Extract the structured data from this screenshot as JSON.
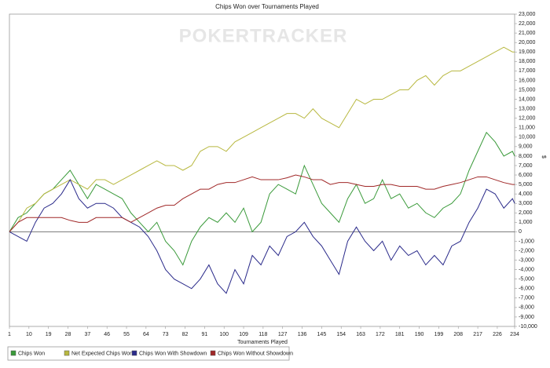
{
  "chart_data": {
    "type": "line",
    "title": "Chips Won over Tournaments Played",
    "watermark": "POKERTRACKER",
    "x_label": "Tournaments Played",
    "y_label": "$",
    "x": [
      1,
      5,
      9,
      13,
      17,
      21,
      25,
      29,
      33,
      37,
      41,
      45,
      49,
      53,
      57,
      61,
      65,
      69,
      73,
      77,
      81,
      85,
      89,
      93,
      97,
      101,
      105,
      109,
      113,
      117,
      121,
      125,
      129,
      133,
      137,
      141,
      145,
      149,
      153,
      157,
      161,
      165,
      169,
      173,
      177,
      181,
      185,
      189,
      193,
      197,
      201,
      205,
      209,
      213,
      217,
      221,
      225,
      229,
      233,
      234
    ],
    "series": [
      {
        "name": "Chips Won",
        "color": "#3a9a3a",
        "values": [
          0,
          1500,
          2000,
          3000,
          4000,
          4500,
          5500,
          6500,
          5000,
          3500,
          5000,
          4500,
          4000,
          3500,
          2000,
          1000,
          0,
          1000,
          -1000,
          -2000,
          -3500,
          -1000,
          500,
          1500,
          1000,
          2000,
          1000,
          2500,
          0,
          1000,
          4000,
          5000,
          4500,
          4000,
          7000,
          5000,
          3000,
          2000,
          1000,
          3500,
          5000,
          3000,
          3500,
          5500,
          3500,
          4000,
          2500,
          3000,
          2000,
          1500,
          2500,
          3000,
          4000,
          6500,
          8500,
          10500,
          9500,
          8000,
          8500,
          8000
        ]
      },
      {
        "name": "Net Expected Chips Won",
        "color": "#b8b840",
        "values": [
          0,
          1000,
          2500,
          3000,
          4000,
          4500,
          5000,
          5500,
          5000,
          4500,
          5500,
          5500,
          5000,
          5500,
          6000,
          6500,
          7000,
          7500,
          7000,
          7000,
          6500,
          7000,
          8500,
          9000,
          9000,
          8500,
          9500,
          10000,
          10500,
          11000,
          11500,
          12000,
          12500,
          12500,
          12000,
          13000,
          12000,
          11500,
          11000,
          12500,
          14000,
          13500,
          14000,
          14000,
          14500,
          15000,
          15000,
          16000,
          16500,
          15500,
          16500,
          17000,
          17000,
          17500,
          18000,
          18500,
          19000,
          19500,
          19000,
          19000
        ]
      },
      {
        "name": "Chips Won With Showdown",
        "color": "#2a2a8a",
        "values": [
          0,
          -500,
          -1000,
          1000,
          2500,
          3000,
          4000,
          5500,
          3500,
          2500,
          3000,
          3000,
          2500,
          1500,
          1000,
          500,
          -500,
          -2000,
          -4000,
          -5000,
          -5500,
          -6000,
          -5000,
          -3500,
          -5500,
          -6500,
          -4000,
          -5500,
          -2500,
          -3500,
          -1500,
          -2500,
          -500,
          0,
          1000,
          -500,
          -1500,
          -3000,
          -4500,
          -1000,
          500,
          -1000,
          -2000,
          -1000,
          -3000,
          -1500,
          -2500,
          -2000,
          -3500,
          -2500,
          -3500,
          -1500,
          -1000,
          1000,
          2500,
          4500,
          4000,
          2500,
          3500,
          3000
        ]
      },
      {
        "name": "Chips Won Without Showdown",
        "color": "#a02828",
        "values": [
          0,
          1000,
          1500,
          1500,
          1500,
          1500,
          1500,
          1200,
          1000,
          1000,
          1500,
          1500,
          1500,
          1500,
          1000,
          1500,
          2000,
          2500,
          2800,
          2800,
          3500,
          4000,
          4500,
          4500,
          5000,
          5200,
          5200,
          5500,
          5800,
          5500,
          5500,
          5500,
          5700,
          6000,
          5800,
          5500,
          5500,
          5000,
          5200,
          5200,
          5000,
          4800,
          4800,
          5000,
          5000,
          4800,
          4800,
          4800,
          4500,
          4500,
          4800,
          5000,
          5200,
          5500,
          5800,
          5800,
          5500,
          5200,
          5000,
          5000
        ]
      }
    ],
    "xlim": [
      1,
      234
    ],
    "xticks": [
      1,
      10,
      19,
      28,
      37,
      46,
      55,
      64,
      73,
      82,
      91,
      100,
      109,
      118,
      127,
      136,
      145,
      154,
      163,
      172,
      181,
      190,
      199,
      208,
      217,
      226,
      234
    ],
    "ylim": [
      -10000,
      23000
    ],
    "yticks": [
      {
        "value": -10000,
        "label": "-10,000"
      },
      {
        "value": -9000,
        "label": "-9,000"
      },
      {
        "value": -8000,
        "label": "-8,000"
      },
      {
        "value": -7000,
        "label": "-7,000"
      },
      {
        "value": -6000,
        "label": "-6,000"
      },
      {
        "value": -5000,
        "label": "-5,000"
      },
      {
        "value": -4000,
        "label": "-4,000"
      },
      {
        "value": -3000,
        "label": "-3,000"
      },
      {
        "value": -2000,
        "label": "-2,000"
      },
      {
        "value": -1000,
        "label": "-1,000"
      },
      0,
      {
        "value": 1000,
        "label": "1,000"
      },
      {
        "value": 2000,
        "label": "2,000"
      },
      {
        "value": 3000,
        "label": "3,000"
      },
      {
        "value": 4000,
        "label": "4,000"
      },
      {
        "value": 5000,
        "label": "5,000"
      },
      {
        "value": 6000,
        "label": "6,000"
      },
      {
        "value": 7000,
        "label": "7,000"
      },
      {
        "value": 8000,
        "label": "8,000"
      },
      {
        "value": 9000,
        "label": "9,000"
      },
      {
        "value": 10000,
        "label": "10,000"
      },
      {
        "value": 11000,
        "label": "11,000"
      },
      {
        "value": 12000,
        "label": "12,000"
      },
      {
        "value": 13000,
        "label": "13,000"
      },
      {
        "value": 14000,
        "label": "14,000"
      },
      {
        "value": 15000,
        "label": "15,000"
      },
      {
        "value": 16000,
        "label": "16,000"
      },
      {
        "value": 17000,
        "label": "17,000"
      },
      {
        "value": 18000,
        "label": "18,000"
      },
      {
        "value": 19000,
        "label": "19,000"
      },
      {
        "value": 20000,
        "label": "20,000"
      },
      {
        "value": 21000,
        "label": "21,000"
      },
      {
        "value": 22000,
        "label": "22,000"
      },
      {
        "value": 23000,
        "label": "23,000"
      }
    ],
    "grid": false,
    "legend": "bottom"
  }
}
